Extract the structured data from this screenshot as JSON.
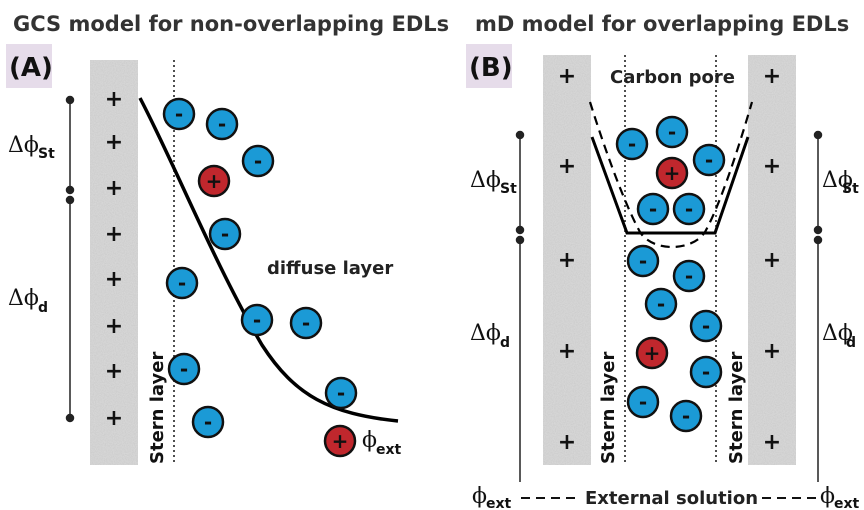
{
  "panelA": {
    "title": "GCS model for non-overlapping EDLs",
    "label": "(A)",
    "stern_label": "Stern layer",
    "diffuse_label": "diffuse layer",
    "delta_st": {
      "sym": "Δϕ",
      "sub": "St"
    },
    "delta_d": {
      "sym": "Δϕ",
      "sub": "d"
    },
    "phi_ext": {
      "sym": "ϕ",
      "sub": "ext"
    }
  },
  "panelB": {
    "title": "mD model for overlapping EDLs",
    "label": "(B)",
    "pore_label": "Carbon pore",
    "stern_label_left": "Stern layer",
    "stern_label_right": "Stern layer",
    "external_label": "External solution",
    "delta_st_left": {
      "sym": "Δϕ",
      "sub": "St"
    },
    "delta_d_left": {
      "sym": "Δϕ",
      "sub": "d"
    },
    "delta_st_right": {
      "sym": "Δϕ",
      "sub": "St"
    },
    "delta_d_right": {
      "sym": "Δϕ",
      "sub": "d"
    },
    "phi_ext_left": {
      "sym": "ϕ",
      "sub": "ext"
    },
    "phi_ext_right": {
      "sym": "ϕ",
      "sub": "ext"
    }
  },
  "signs": {
    "plus": "+",
    "minus": "-"
  },
  "colors": {
    "anion": "#1b9ad6",
    "cation": "#c0272d",
    "electrode": "#d6d6d6",
    "label_bg": "#e6dcea"
  },
  "icons": {
    "anion": "anion-icon",
    "cation": "cation-icon",
    "electrode": "electrode-surface"
  }
}
